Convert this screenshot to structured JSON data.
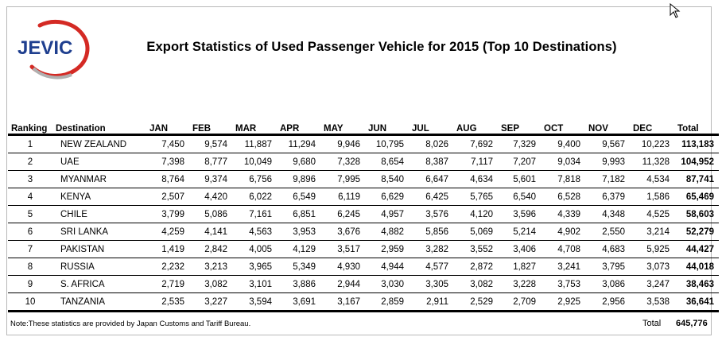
{
  "logo_text": "JEVIC",
  "title": "Export Statistics of Used Passenger Vehicle for 2015 (Top 10 Destinations)",
  "headers": [
    "Ranking",
    "Destination",
    "JAN",
    "FEB",
    "MAR",
    "APR",
    "MAY",
    "JUN",
    "JUL",
    "AUG",
    "SEP",
    "OCT",
    "NOV",
    "DEC",
    "Total"
  ],
  "rows": [
    [
      "1",
      "NEW ZEALAND",
      "7,450",
      "9,574",
      "11,887",
      "11,294",
      "9,946",
      "10,795",
      "8,026",
      "7,692",
      "7,329",
      "9,400",
      "9,567",
      "10,223",
      "113,183"
    ],
    [
      "2",
      "UAE",
      "7,398",
      "8,777",
      "10,049",
      "9,680",
      "7,328",
      "8,654",
      "8,387",
      "7,117",
      "7,207",
      "9,034",
      "9,993",
      "11,328",
      "104,952"
    ],
    [
      "3",
      "MYANMAR",
      "8,764",
      "9,374",
      "6,756",
      "9,896",
      "7,995",
      "8,540",
      "6,647",
      "4,634",
      "5,601",
      "7,818",
      "7,182",
      "4,534",
      "87,741"
    ],
    [
      "4",
      "KENYA",
      "2,507",
      "4,420",
      "6,022",
      "6,549",
      "6,119",
      "6,629",
      "6,425",
      "5,765",
      "6,540",
      "6,528",
      "6,379",
      "1,586",
      "65,469"
    ],
    [
      "5",
      "CHILE",
      "3,799",
      "5,086",
      "7,161",
      "6,851",
      "6,245",
      "4,957",
      "3,576",
      "4,120",
      "3,596",
      "4,339",
      "4,348",
      "4,525",
      "58,603"
    ],
    [
      "6",
      "SRI LANKA",
      "4,259",
      "4,141",
      "4,563",
      "3,953",
      "3,676",
      "4,882",
      "5,856",
      "5,069",
      "5,214",
      "4,902",
      "2,550",
      "3,214",
      "52,279"
    ],
    [
      "7",
      "PAKISTAN",
      "1,419",
      "2,842",
      "4,005",
      "4,129",
      "3,517",
      "2,959",
      "3,282",
      "3,552",
      "3,406",
      "4,708",
      "4,683",
      "5,925",
      "44,427"
    ],
    [
      "8",
      "RUSSIA",
      "2,232",
      "3,213",
      "3,965",
      "5,349",
      "4,930",
      "4,944",
      "4,577",
      "2,872",
      "1,827",
      "3,241",
      "3,795",
      "3,073",
      "44,018"
    ],
    [
      "9",
      "S. AFRICA",
      "2,719",
      "3,082",
      "3,101",
      "3,886",
      "2,944",
      "3,030",
      "3,305",
      "3,082",
      "3,228",
      "3,753",
      "3,086",
      "3,247",
      "38,463"
    ],
    [
      "10",
      "TANZANIA",
      "2,535",
      "3,227",
      "3,594",
      "3,691",
      "3,167",
      "2,859",
      "2,911",
      "2,529",
      "2,709",
      "2,925",
      "2,956",
      "3,538",
      "36,641"
    ]
  ],
  "note": "Note:These statistics are provided by Japan Customs and Tariff Bureau.",
  "grand_total_label": "Total",
  "grand_total_value": "645,776",
  "colors": {
    "logo_blue": "#1f3f8f",
    "logo_red": "#d42a24"
  }
}
